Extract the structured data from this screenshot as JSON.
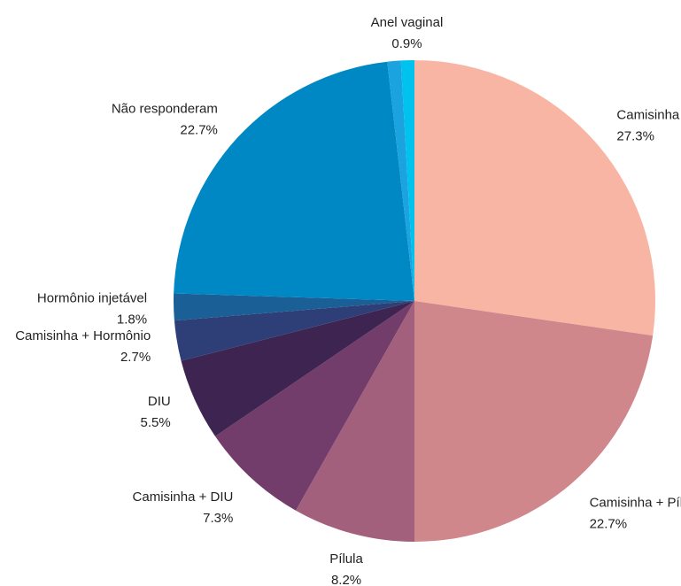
{
  "chart_data": {
    "type": "pie",
    "categories": [
      "Camisinha",
      "Camisinha + Pílula",
      "Pílula",
      "Camisinha + DIU",
      "DIU",
      "Camisinha + Hormônio",
      "Hormônio injetável",
      "Não responderam",
      null,
      "Anel vaginal"
    ],
    "values": [
      27.3,
      22.7,
      8.2,
      7.3,
      5.5,
      2.7,
      1.8,
      22.7,
      0.9,
      0.9
    ],
    "value_labels": [
      "27.3%",
      "22.7%",
      "8.2%",
      "7.3%",
      "5.5%",
      "2.7%",
      "1.8%",
      "22.7%",
      null,
      "0.9%"
    ],
    "colors": [
      "#f9b5a4",
      "#d0878c",
      "#a2607d",
      "#733d6b",
      "#3e2450",
      "#2e3f78",
      "#1a5f96",
      "#0088c4",
      "#1aa3de",
      "#00c2ee"
    ]
  }
}
